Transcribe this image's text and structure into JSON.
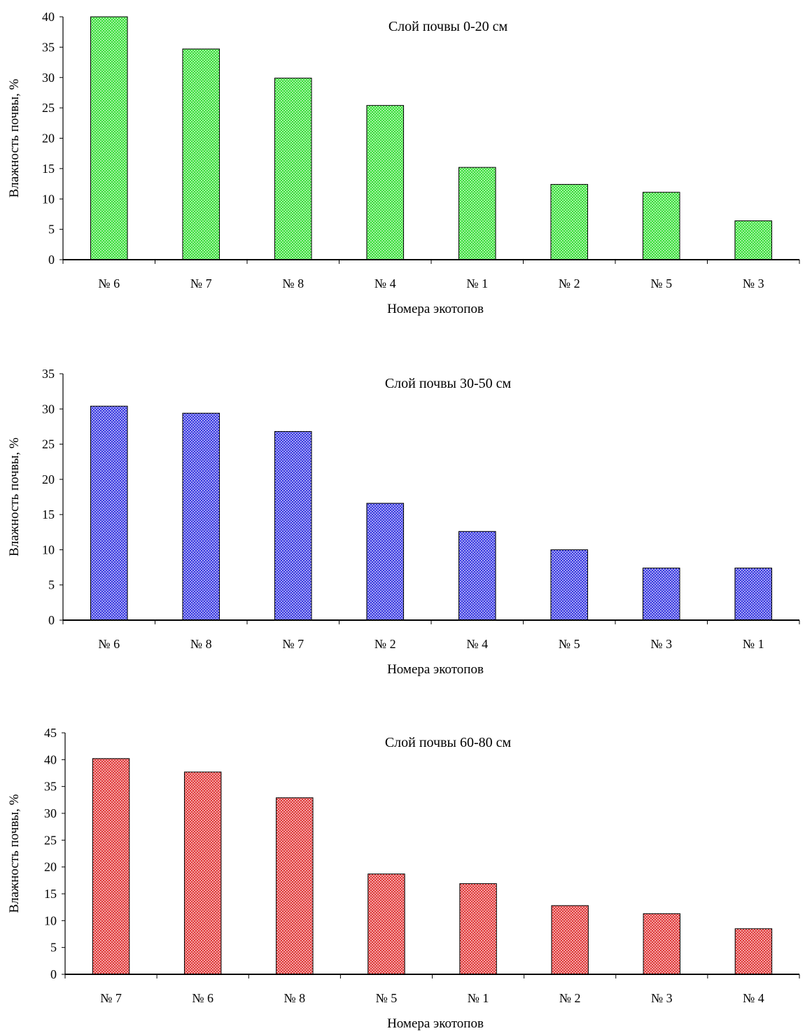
{
  "chart_data": [
    {
      "type": "bar",
      "title": "Слой почвы  0-20 см",
      "xlabel": "Номера  экотопов",
      "ylabel": "Влажность  почвы, %",
      "categories": [
        "№ 6",
        "№ 7",
        "№ 8",
        "№ 4",
        "№ 1",
        "№ 2",
        "№ 5",
        "№ 3"
      ],
      "values": [
        40,
        34.7,
        29.9,
        25.4,
        15.2,
        12.4,
        11.1,
        6.4
      ],
      "ylim": [
        0,
        40
      ],
      "yticks": [
        0,
        5,
        10,
        15,
        20,
        25,
        30,
        35,
        40
      ],
      "grid": false,
      "bar_color": "#22dd22",
      "fill_color": "#c4f4c4"
    },
    {
      "type": "bar",
      "title": "Слой почвы  30-50 см",
      "xlabel": "Номера  экотопов",
      "ylabel": "Влажность  почвы, %",
      "categories": [
        "№ 6",
        "№ 8",
        "№ 7",
        "№ 2",
        "№ 4",
        "№ 5",
        "№ 3",
        "№ 1"
      ],
      "values": [
        30.4,
        29.4,
        26.8,
        16.6,
        12.6,
        10.0,
        7.4,
        7.4
      ],
      "ylim": [
        0,
        35
      ],
      "yticks": [
        0,
        5,
        10,
        15,
        20,
        25,
        30,
        35
      ],
      "grid": false,
      "bar_color": "#2222dd",
      "fill_color": "#c4c4f8"
    },
    {
      "type": "bar",
      "title": "Слой почвы  60-80 см",
      "xlabel": "Номера  экотопов",
      "ylabel": "Влажность  почвы, %",
      "categories": [
        "№ 7",
        "№ 6",
        "№ 8",
        "№ 5",
        "№ 1",
        "№ 2",
        "№ 3",
        "№ 4"
      ],
      "values": [
        40.2,
        37.7,
        32.9,
        18.7,
        16.9,
        12.8,
        11.3,
        8.5
      ],
      "ylim": [
        0,
        45
      ],
      "yticks": [
        0,
        5,
        10,
        15,
        20,
        25,
        30,
        35,
        40,
        45
      ],
      "grid": false,
      "bar_color": "#dd2222",
      "fill_color": "#f8c4c4"
    }
  ]
}
